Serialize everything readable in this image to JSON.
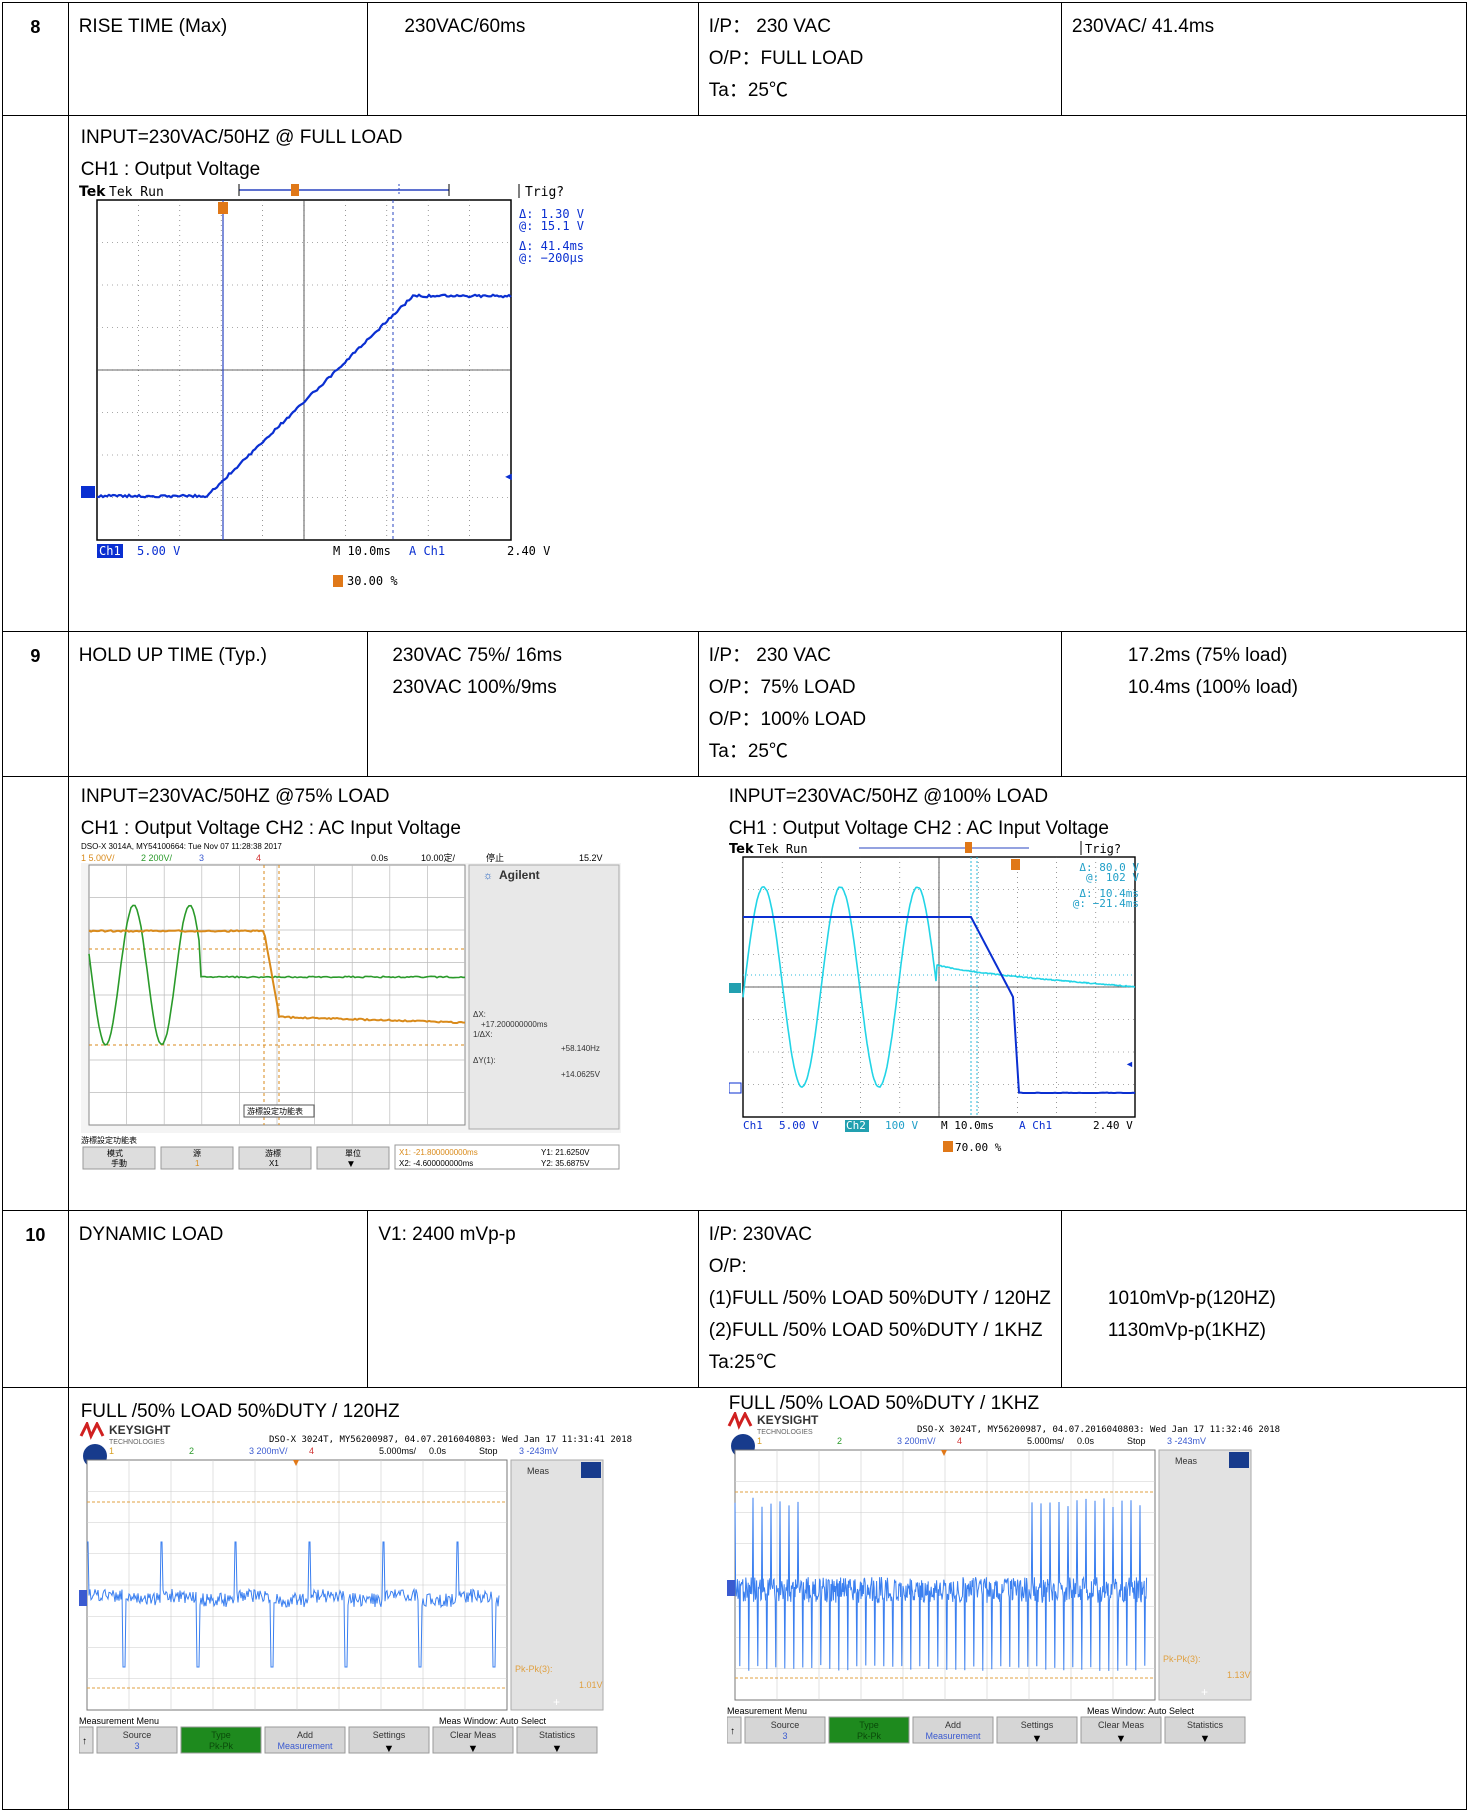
{
  "rows": [
    {
      "no": "8",
      "item": "RISE TIME (Max)",
      "spec": [
        "230VAC/60ms"
      ],
      "conditions": [
        "I/P：  230 VAC",
        "O/P：FULL LOAD",
        "Ta：25℃"
      ],
      "result": [
        "230VAC/ 41.4ms"
      ],
      "captions": [
        [
          "INPUT=230VAC/50HZ @ FULL LOAD",
          "CH1 : Output Voltage"
        ]
      ]
    },
    {
      "no": "9",
      "item": "HOLD UP TIME (Typ.)",
      "spec": [
        "230VAC 75%/ 16ms",
        "230VAC 100%/9ms"
      ],
      "conditions": [
        "I/P：  230 VAC",
        "O/P：75% LOAD",
        "O/P：100% LOAD",
        "Ta：25℃"
      ],
      "result": [
        "17.2ms (75% load)",
        "10.4ms (100% load)"
      ],
      "captions": [
        [
          "INPUT=230VAC/50HZ @75% LOAD",
          "CH1 : Output Voltage CH2 : AC Input Voltage"
        ],
        [
          "INPUT=230VAC/50HZ @100% LOAD",
          "CH1 : Output Voltage CH2 : AC Input Voltage"
        ]
      ]
    },
    {
      "no": "10",
      "item": "DYNAMIC LOAD",
      "spec": [
        "V1: 2400 mVp-p"
      ],
      "conditions": [
        "I/P: 230VAC",
        "O/P:",
        "(1)FULL /50% LOAD 50%DUTY / 120HZ",
        "(2)FULL /50% LOAD 50%DUTY / 1KHZ",
        "Ta:25℃"
      ],
      "result": [
        "",
        "",
        "1010mVp-p(120HZ)",
        "1130mVp-p(1KHZ)"
      ],
      "captions": [
        [
          "FULL /50% LOAD 50%DUTY / 120HZ"
        ],
        [
          "FULL /50% LOAD 50%DUTY / 1KHZ"
        ]
      ]
    }
  ],
  "scope_tek_rise": {
    "status": "Tek Run",
    "trig": "Trig?",
    "cursor1": [
      "Δ:   1.30 V",
      "@:   15.1 V"
    ],
    "cursor2": [
      "Δ:  41.4ms",
      "@: −200μs"
    ],
    "ch": "Ch1",
    "volts": "5.00 V",
    "time": "M 10.0ms",
    "trigch": "A  Ch1",
    "triglevel": "2.40 V",
    "position": "30.00 %",
    "trace_color": "#0a2fd1"
  },
  "scope_agilent": {
    "header": "DSO-X 3014A, MY54100664: Tue Nov 07 11:28:38 2017",
    "ch_bar": [
      "1  5.00V/",
      "2  200V/",
      "3",
      "4",
      "0.0s",
      "10.00定/",
      "停止",
      "15.2V"
    ],
    "brand": "Agilent",
    "meas": [
      "ΔX:",
      "+17.200000000ms",
      "1/ΔX:",
      "+58.140Hz",
      "ΔY(1):",
      "+14.0625V"
    ],
    "menu_title": "游標設定功能表",
    "overlay": "游標設定功能表",
    "softkeys": [
      [
        "模式",
        "手動"
      ],
      [
        "源",
        "1"
      ],
      [
        "游標",
        "X1"
      ],
      [
        "單位",
        ""
      ]
    ],
    "cursors": [
      "X1: -21.800000000ms",
      "X2: -4.600000000ms",
      "Y1: 21.6250V",
      "Y2: 35.6875V"
    ],
    "colors": {
      "ch1": "#d98a1a",
      "ch2": "#2a9a2a"
    }
  },
  "scope_tek_hold": {
    "status": "Tek Run",
    "trig": "Trig?",
    "cursor1": [
      "Δ:   80.0 V",
      "@:   102 V"
    ],
    "cursor2": [
      "Δ:  10.4ms",
      "@: −21.4ms"
    ],
    "bottom": [
      "Ch1",
      "5.00 V",
      "Ch2",
      "100 V",
      "M 10.0ms",
      "A  Ch1",
      "2.40 V"
    ],
    "position": "70.00 %",
    "colors": {
      "ch1": "#0a2fd1",
      "ch2": "#22d4e6"
    }
  },
  "scope_keysight_120": {
    "brand": "KEYSIGHT",
    "brand_sub": "TECHNOLOGIES",
    "header": "DSO-X 3024T, MY56200987, 04.07.2016040803: Wed Jan 17 11:31:41 2018",
    "bar": [
      "1",
      "2",
      "3  200mV/",
      "4",
      "5.000ms/",
      "0.0s",
      "Stop",
      "3  -243mV"
    ],
    "side_title": "Meas",
    "meas_label": "Pk-Pk(3):",
    "meas_value": "1.01V",
    "menu_title": "Measurement Menu",
    "window": "Meas Window: Auto Select",
    "softkeys": [
      [
        "Source",
        "3"
      ],
      [
        "Type",
        "Pk-Pk"
      ],
      [
        "Add",
        "Measurement"
      ],
      [
        "Settings",
        ""
      ],
      [
        "Clear Meas",
        ""
      ],
      [
        "Statistics",
        ""
      ]
    ],
    "trace_color": "#3a7ff0"
  },
  "scope_keysight_1k": {
    "brand": "KEYSIGHT",
    "brand_sub": "TECHNOLOGIES",
    "header": "DSO-X 3024T, MY56200987, 04.07.2016040803: Wed Jan 17 11:32:46 2018",
    "bar": [
      "1",
      "2",
      "3  200mV/",
      "4",
      "5.000ms/",
      "0.0s",
      "Stop",
      "3  -243mV"
    ],
    "side_title": "Meas",
    "meas_label": "Pk-Pk(3):",
    "meas_value": "1.13V",
    "menu_title": "Measurement Menu",
    "window": "Meas Window: Auto Select",
    "softkeys": [
      [
        "Source",
        "3"
      ],
      [
        "Type",
        "Pk-Pk"
      ],
      [
        "Add",
        "Measurement"
      ],
      [
        "Settings",
        ""
      ],
      [
        "Clear Meas",
        ""
      ],
      [
        "Statistics",
        ""
      ]
    ],
    "trace_color": "#3a7ff0"
  }
}
